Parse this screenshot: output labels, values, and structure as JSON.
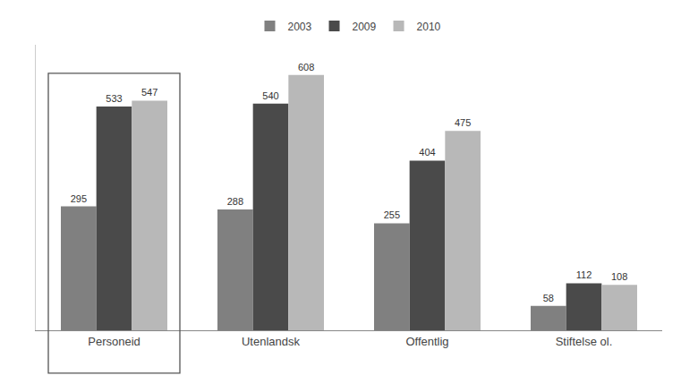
{
  "chart_data": {
    "type": "bar",
    "categories": [
      "Personeid",
      "Utenlandsk",
      "Offentlig",
      "Stiftelse ol."
    ],
    "series": [
      {
        "name": "2003",
        "color": "#808080",
        "values": [
          295,
          288,
          255,
          58
        ]
      },
      {
        "name": "2009",
        "color": "#4a4a4a",
        "values": [
          533,
          540,
          404,
          112
        ]
      },
      {
        "name": "2010",
        "color": "#b8b8b8",
        "values": [
          547,
          608,
          475,
          108
        ]
      }
    ],
    "ylim": [
      0,
      680
    ],
    "grid": false,
    "legend": "upper center",
    "data_labels": true,
    "tick_labels": "x"
  }
}
